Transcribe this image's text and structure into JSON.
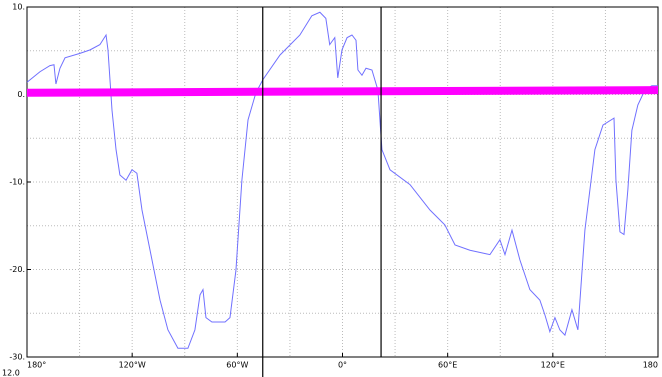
{
  "chart_data": {
    "type": "line",
    "xlim": [
      -180,
      180
    ],
    "ylim": [
      -30,
      10
    ],
    "xticks": [
      {
        "value": -180,
        "label": "180°"
      },
      {
        "value": -120,
        "label": "120°W"
      },
      {
        "value": -60,
        "label": "60°W"
      },
      {
        "value": 0,
        "label": "0°"
      },
      {
        "value": 60,
        "label": "60°E"
      },
      {
        "value": 120,
        "label": "120°E"
      },
      {
        "value": 180,
        "label": "180"
      }
    ],
    "xminor": [
      -150,
      -90,
      -30,
      30,
      90,
      150
    ],
    "yticks": [
      {
        "value": 10,
        "label": "10."
      },
      {
        "value": 0,
        "label": "0."
      },
      {
        "value": -10,
        "label": "-10."
      },
      {
        "value": -20,
        "label": "-20."
      },
      {
        "value": -30,
        "label": "-30."
      }
    ],
    "yminor": [
      5,
      -5,
      -15,
      -25
    ],
    "grid": true,
    "vlines": [
      -45.5,
      22
    ],
    "vline_color": "#000000",
    "annotation": "12.0",
    "series": [
      {
        "color": "#7070ff",
        "width": 1,
        "x": [
          -180,
          -172.6,
          -166.9,
          -164.6,
          -163.5,
          -161.2,
          -158.3,
          -149.8,
          -144,
          -138.4,
          -134.9,
          -133.8,
          -131.5,
          -129.2,
          -127,
          -123.5,
          -120.1,
          -117.3,
          -114.4,
          -109.8,
          -104.1,
          -99.6,
          -93.9,
          -88.2,
          -84.2,
          -81.3,
          -79.6,
          -77.9,
          -74.5,
          -67,
          -64.2,
          -60.8,
          -57.4,
          -53.9,
          -49.4,
          -45.4,
          -35.7,
          -24.3,
          -17.5,
          -12.9,
          -9.5,
          -7.3,
          -4.4,
          -2.7,
          -0.3,
          2.6,
          5.4,
          7.7,
          8.8,
          11.1,
          13.4,
          16.8,
          20.2,
          22.5,
          27.1,
          38.5,
          49.9,
          58.4,
          64.2,
          72.7,
          84.1,
          89.8,
          92.7,
          96.7,
          101.2,
          106.9,
          112.6,
          115.5,
          118.3,
          121.2,
          124,
          126.9,
          130.9,
          134.3,
          138.3,
          144,
          148.6,
          154.9,
          156,
          158.3,
          160.6,
          162.8,
          165.1,
          168.5,
          172.5,
          176.5,
          180
        ],
        "values": [
          1.4,
          2.6,
          3.3,
          3.4,
          1.2,
          3.0,
          4.2,
          4.7,
          5.1,
          5.7,
          6.8,
          5.1,
          -1.8,
          -6.3,
          -9.2,
          -9.8,
          -8.6,
          -9.0,
          -13.2,
          -17.8,
          -23.5,
          -26.9,
          -29,
          -29,
          -26.9,
          -22.9,
          -22.3,
          -25.5,
          -26,
          -26,
          -25.5,
          -20.1,
          -9.8,
          -2.9,
          0.2,
          1.7,
          4.5,
          6.8,
          9,
          9.4,
          8.7,
          5.7,
          6.5,
          1.9,
          5.1,
          6.5,
          6.8,
          6.2,
          2.8,
          2.2,
          3.0,
          2.8,
          0.5,
          -6.3,
          -8.6,
          -10.3,
          -13.2,
          -14.9,
          -17.2,
          -17.8,
          -18.3,
          -16.6,
          -18.3,
          -15.5,
          -18.9,
          -22.3,
          -23.5,
          -25.2,
          -27.1,
          -25.5,
          -26.9,
          -27.5,
          -24.6,
          -26.9,
          -15.5,
          -6.3,
          -3.5,
          -2.7,
          -9.8,
          -15.7,
          -16,
          -10.9,
          -4.1,
          -1.2,
          0.5,
          1.0,
          1.0
        ]
      },
      {
        "color": "#ff00ff",
        "width": 8,
        "x": [
          -180,
          180
        ],
        "values": [
          0.2,
          0.5
        ]
      }
    ]
  }
}
